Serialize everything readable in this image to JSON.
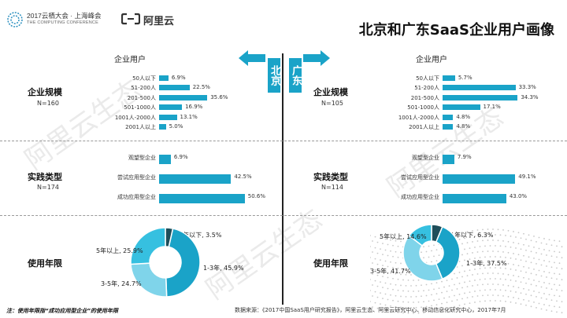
{
  "header": {
    "event_title": "2017云栖大会 · 上海峰会",
    "event_subtitle": "THE COMPUTING CONFERENCE",
    "brand": "阿里云",
    "slide_title": "北京和广东SaaS企业用户画像"
  },
  "watermark": "阿里云生态",
  "regions": {
    "left": "北京",
    "right": "广东"
  },
  "colors": {
    "accent": "#1aa3c8",
    "pie": [
      "#1f4e5a",
      "#1aa3c8",
      "#7fd4ea",
      "#36c0e0"
    ]
  },
  "chart_data": [
    {
      "type": "bar",
      "region": "北京",
      "title": "企业用户",
      "section": "企业规模",
      "n_label": "N=160",
      "categories": [
        "50人以下",
        "51-200人",
        "201-500人",
        "501-1000人",
        "1001人-2000人",
        "2001人以上"
      ],
      "values": [
        6.9,
        22.5,
        35.6,
        16.9,
        13.1,
        5.0
      ],
      "value_labels": [
        "6.9%",
        "22.5%",
        "35.6%",
        "16.9%",
        "13.1%",
        "5.0%"
      ]
    },
    {
      "type": "bar",
      "region": "广东",
      "title": "企业用户",
      "section": "企业规模",
      "n_label": "N=105",
      "categories": [
        "50人以下",
        "51-200人",
        "201-500人",
        "501-1000人",
        "1001人-2000人",
        "2001人以上"
      ],
      "values": [
        5.7,
        33.3,
        34.3,
        17.1,
        4.8,
        4.8
      ],
      "value_labels": [
        "5.7%",
        "33.3%",
        "34.3%",
        "17.1%",
        "4.8%",
        "4.8%"
      ]
    },
    {
      "type": "bar",
      "region": "北京",
      "section": "实践类型",
      "n_label": "N=174",
      "categories": [
        "观望型企业",
        "尝试应用型企业",
        "成功应用型企业"
      ],
      "values": [
        6.9,
        42.5,
        50.6
      ],
      "value_labels": [
        "6.9%",
        "42.5%",
        "50.6%"
      ]
    },
    {
      "type": "bar",
      "region": "广东",
      "section": "实践类型",
      "n_label": "N=114",
      "categories": [
        "观望型企业",
        "尝试应用型企业",
        "成功应用型企业"
      ],
      "values": [
        7.9,
        49.1,
        43.0
      ],
      "value_labels": [
        "7.9%",
        "49.1%",
        "43.0%"
      ]
    },
    {
      "type": "pie",
      "region": "北京",
      "section": "使用年限",
      "slices": [
        {
          "label": "1年以下, 3.5%",
          "value": 3.5
        },
        {
          "label": "1-3年, 45.9%",
          "value": 45.9
        },
        {
          "label": "3-5年, 24.7%",
          "value": 24.7
        },
        {
          "label": "5年以上, 25.9%",
          "value": 25.9
        }
      ]
    },
    {
      "type": "pie",
      "region": "广东",
      "section": "使用年限",
      "slices": [
        {
          "label": "1年以下, 6.3%",
          "value": 6.3
        },
        {
          "label": "1-3年, 37.5%",
          "value": 37.5
        },
        {
          "label": "3-5年, 41.7%",
          "value": 41.7
        },
        {
          "label": "5年以上, 14.6%",
          "value": 14.6
        }
      ]
    }
  ],
  "footer": {
    "note": "注：使用年限指“成功应用型企业”的使用年限",
    "source": "数据来源：《2017中国SaaS用户研究报告》，阿里云生态、阿里云研究中心、移动信息化研究中心，2017年7月"
  }
}
